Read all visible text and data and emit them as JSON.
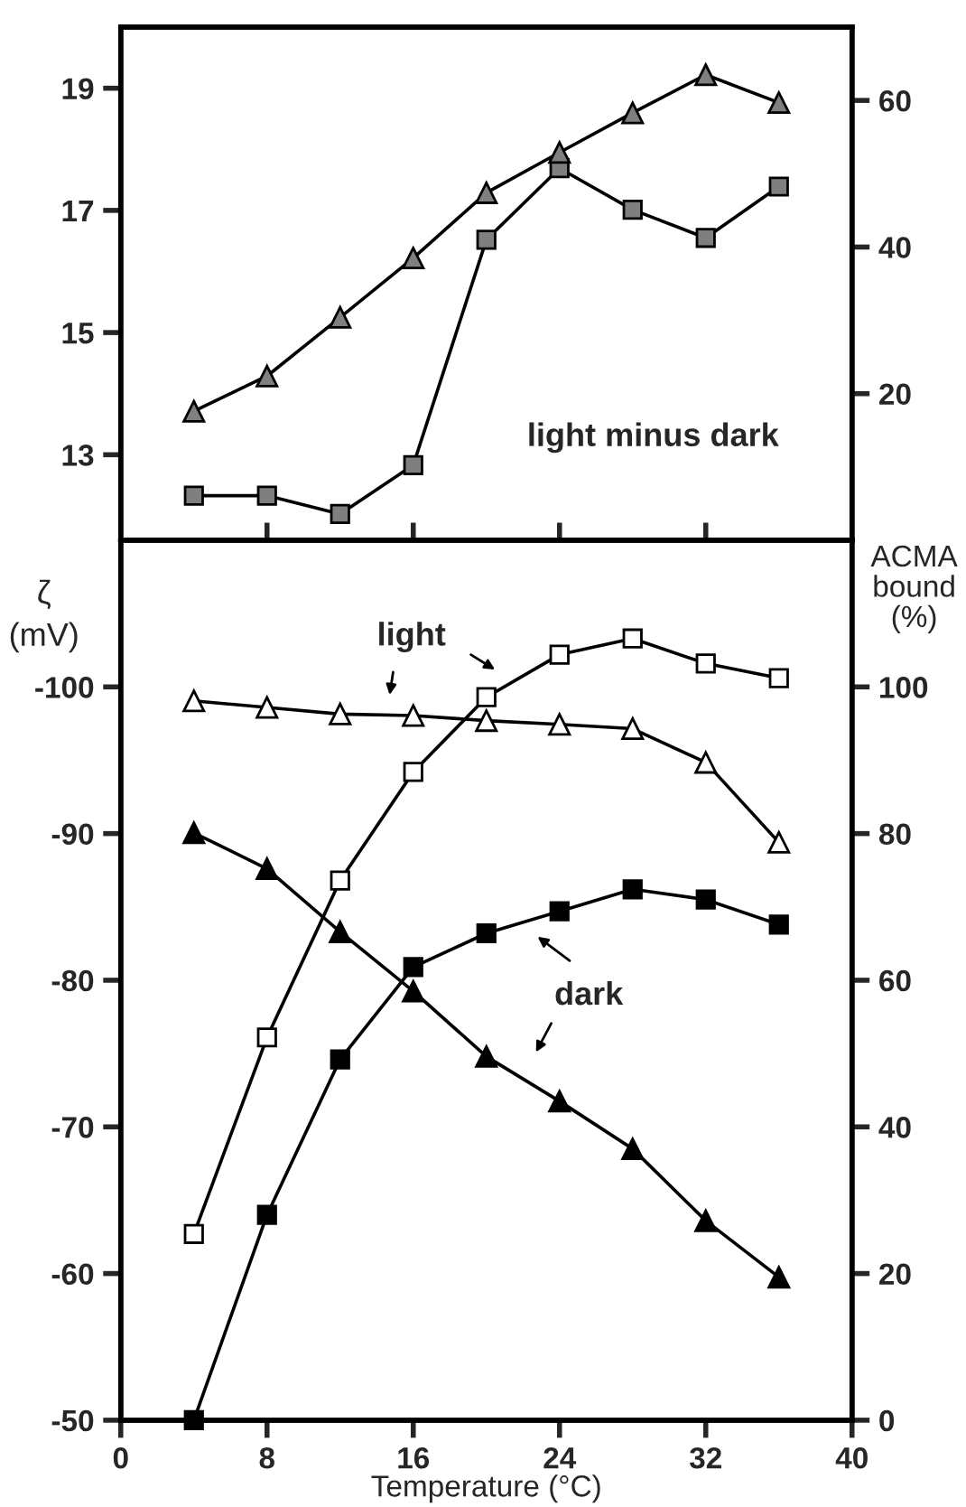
{
  "chart_data": [
    {
      "type": "line",
      "x": [
        4,
        8,
        12,
        16,
        20,
        24,
        28,
        32,
        36
      ],
      "xlim": [
        0,
        40
      ],
      "xticks": [
        {
          "value": 8,
          "label": null
        },
        {
          "value": 16,
          "label": null
        },
        {
          "value": 24,
          "label": null
        },
        {
          "value": 32,
          "label": null
        }
      ],
      "ylim": [
        11.6,
        20
      ],
      "yticks": [
        13,
        15,
        17,
        19
      ],
      "y2lim": [
        0,
        70
      ],
      "y2ticks": [
        20,
        40,
        60
      ],
      "grid": false,
      "legend": false,
      "tick_labels": "y",
      "annotations": [
        "light minus dark"
      ],
      "series": [
        {
          "color": "#7f7f7f",
          "marker": "square",
          "values": [
            12.33,
            12.33,
            12.03,
            12.83,
            16.52,
            17.69,
            17.01,
            16.55,
            17.39
          ]
        },
        {
          "color": "#7f7f7f",
          "marker": "triangle",
          "axis": "y2",
          "values": [
            17.6,
            22.4,
            30.4,
            38.5,
            47.4,
            52.9,
            58.3,
            63.5,
            59.7
          ]
        }
      ]
    },
    {
      "type": "line",
      "x": [
        4,
        8,
        12,
        16,
        20,
        24,
        28,
        32,
        36
      ],
      "xlim": [
        0,
        40
      ],
      "xticks": [
        0,
        8,
        16,
        24,
        32,
        40
      ],
      "ylim": [
        -50,
        -110
      ],
      "yticks": [
        -50,
        -60,
        -70,
        -80,
        -90,
        -100
      ],
      "y2lim": [
        0,
        120
      ],
      "y2ticks": [
        0,
        20,
        40,
        60,
        80,
        100
      ],
      "xlabel": "Temperature (°C)",
      "ylabel": "ζ (mV)",
      "y2label": "ACMA bound (%)",
      "grid": false,
      "legend": false,
      "annotations": [
        "light",
        "dark"
      ],
      "series": [
        {
          "color": "#ffffff",
          "marker": "square",
          "values": [
            -62.7,
            -76.1,
            -86.8,
            -94.2,
            -99.3,
            -102.2,
            -103.3,
            -101.6,
            -100.6
          ]
        },
        {
          "color": "#000000",
          "marker": "square",
          "values": [
            -50,
            -64.0,
            -74.6,
            -80.9,
            -83.2,
            -84.7,
            -86.2,
            -85.5,
            -83.8
          ]
        },
        {
          "color": "#ffffff",
          "marker": "triangle",
          "axis": "y2",
          "values": [
            98.1,
            97.2,
            96.3,
            96.1,
            95.4,
            94.9,
            94.3,
            89.7,
            78.8
          ]
        },
        {
          "color": "#000000",
          "marker": "triangle",
          "axis": "y2",
          "values": [
            80.1,
            75.2,
            66.6,
            58.5,
            49.6,
            43.5,
            37.0,
            27.2,
            19.5
          ]
        }
      ]
    }
  ]
}
